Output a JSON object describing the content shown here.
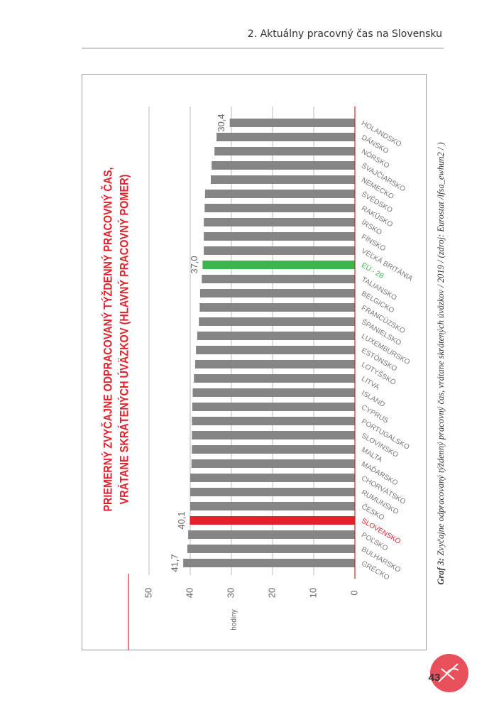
{
  "header": {
    "title": "2. Aktuálny pracovný čas na Slovensku"
  },
  "chart_data": {
    "type": "bar",
    "title": "PRIEMERNÝ ZVYČAJNE ODPRACOVANÝ TÝŽDENNÝ PRACOVNÝ ČAS,",
    "subtitle": "VRÁTANE SKRÁTENÝCH ÚVÄZKOV (HLAVNÝ PRACOVNÝ POMER)",
    "y_label": "hodiny",
    "categories": [
      "GRÉCKO",
      "BULHARSKO",
      "POĽSKO",
      "SLOVENSKO",
      "ČESKO",
      "RUMUNSKO",
      "CHORVÁTSKO",
      "MAĎARSKO",
      "MALTA",
      "SLOVINSKO",
      "PORTUGALSKO",
      "CYPRUS",
      "ISLAND",
      "LITVA",
      "LOTYŠSKO",
      "ESTÓNSKO",
      "LUXEMBURSKO",
      "ŠPANIELSKO",
      "FRANCÚZSKO",
      "BELGICKO",
      "TALIANSKO",
      "EÚ - 28",
      "VEĽKÁ BRITÁNIA",
      "FÍNSKO",
      "ÍRSKO",
      "RAKÚSKO",
      "ŠVÉDSKO",
      "NEMECKO",
      "ŠVAJČIARSKO",
      "NÓRSKO",
      "DÁNSKO",
      "HOLANDSKO"
    ],
    "values": [
      41.7,
      40.7,
      40.5,
      40.1,
      40.0,
      40.0,
      40.0,
      39.7,
      39.6,
      39.6,
      39.6,
      39.5,
      39.4,
      39.1,
      38.8,
      38.6,
      38.3,
      37.9,
      37.7,
      37.6,
      37.2,
      37.0,
      36.7,
      36.7,
      36.7,
      36.5,
      36.4,
      35.0,
      34.8,
      34.1,
      33.6,
      30.4
    ],
    "value_labels": [
      "41,7",
      null,
      null,
      "40,1",
      null,
      null,
      null,
      null,
      null,
      null,
      null,
      null,
      null,
      null,
      null,
      null,
      null,
      null,
      null,
      null,
      null,
      "37,0",
      null,
      null,
      null,
      null,
      null,
      null,
      null,
      null,
      null,
      "30,4"
    ],
    "color": "#858585",
    "colors": [
      "#858585",
      "#858585",
      "#858585",
      "#e3202b",
      "#858585",
      "#858585",
      "#858585",
      "#858585",
      "#858585",
      "#858585",
      "#858585",
      "#858585",
      "#858585",
      "#858585",
      "#858585",
      "#858585",
      "#858585",
      "#858585",
      "#858585",
      "#858585",
      "#858585",
      "#3bb54a",
      "#858585",
      "#858585",
      "#858585",
      "#858585",
      "#858585",
      "#858585",
      "#858585",
      "#858585",
      "#858585",
      "#858585"
    ],
    "ylim": [
      0,
      55
    ],
    "yticks": [
      0,
      10,
      20,
      30,
      40,
      50
    ],
    "grid": true
  },
  "caption": {
    "label": "Graf 3:",
    "text": " Zvyčajne odpracovaný týždenný pracovný čas, vrátane skrátených úväzkov / 2019 / (zdroj: Eurostat /lfsa_ewhun2 / )"
  },
  "page_number": "43"
}
